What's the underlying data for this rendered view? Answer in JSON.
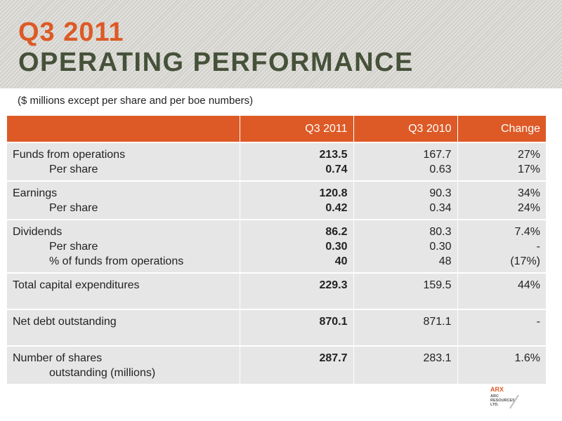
{
  "header": {
    "title_line1": "Q3 2011",
    "title_line2": "OPERATING PERFORMANCE",
    "subtitle": "($ millions except per share and per boe numbers)"
  },
  "table": {
    "columns": [
      "",
      "Q3 2011",
      "Q3 2010",
      "Change"
    ],
    "rows": [
      {
        "labels": [
          "Funds from operations",
          "Per share"
        ],
        "q3_2011": [
          "213.5",
          "0.74"
        ],
        "q3_2010": [
          "167.7",
          "0.63"
        ],
        "change": [
          "27%",
          "17%"
        ]
      },
      {
        "labels": [
          "Earnings",
          "Per share"
        ],
        "q3_2011": [
          "120.8",
          "0.42"
        ],
        "q3_2010": [
          "90.3",
          "0.34"
        ],
        "change": [
          "34%",
          "24%"
        ]
      },
      {
        "labels": [
          "Dividends",
          "Per share",
          "% of funds from operations"
        ],
        "q3_2011": [
          "86.2",
          "0.30",
          "40"
        ],
        "q3_2010": [
          "80.3",
          "0.30",
          "48"
        ],
        "change": [
          "7.4%",
          "-",
          "(17%)"
        ]
      },
      {
        "labels": [
          "Total capital expenditures"
        ],
        "q3_2011": [
          "229.3"
        ],
        "q3_2010": [
          "159.5"
        ],
        "change": [
          "44%"
        ]
      },
      {
        "labels": [
          "Net debt outstanding"
        ],
        "q3_2011": [
          "870.1"
        ],
        "q3_2010": [
          "871.1"
        ],
        "change": [
          "-"
        ]
      },
      {
        "labels": [
          "Number of shares",
          "outstanding (millions)"
        ],
        "q3_2011": [
          "287.7"
        ],
        "q3_2010": [
          "283.1"
        ],
        "change": [
          "1.6%"
        ]
      }
    ]
  },
  "logo": {
    "name": "ARX",
    "lines": [
      "ARC",
      "RESOURCES",
      "LTD."
    ],
    "accent_color": "#dd5a26"
  },
  "colors": {
    "accent": "#dd5a26",
    "title_dark": "#46513a",
    "row_bg": "#e6e6e6"
  }
}
